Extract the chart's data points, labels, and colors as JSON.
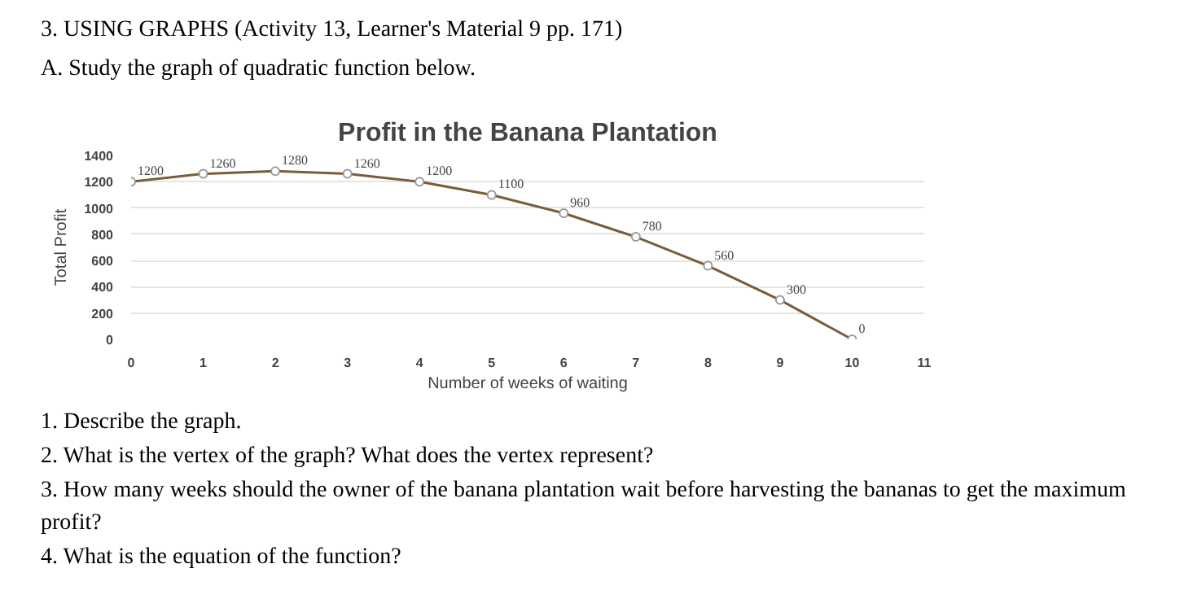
{
  "chart_data": {
    "type": "line",
    "title": "Profit in the Banana Plantation",
    "xlabel": "Number of weeks of waiting",
    "ylabel": "Total Profit",
    "annotations": [
      "3. USING GRAPHS (Activity 13, Learner's Material 9 pp. 171)",
      "A. Study the graph of quadratic function below.",
      "1. Describe the graph.",
      "2. What is the vertex of the graph? What does the vertex represent?",
      "3. How many weeks should the owner of the banana plantation wait before harvesting the bananas to get the maximum profit?",
      "4. What is the equation of the function?"
    ],
    "x": [
      0,
      1,
      2,
      3,
      4,
      5,
      6,
      7,
      8,
      9,
      10
    ],
    "series": [
      {
        "color": "#7a5c3a",
        "values": [
          1200,
          1260,
          1280,
          1260,
          1200,
          1100,
          960,
          780,
          560,
          300,
          0
        ]
      }
    ],
    "xlim": [
      0,
      11
    ],
    "xticks": [
      0,
      1,
      2,
      3,
      4,
      5,
      6,
      7,
      8,
      9,
      10,
      11
    ],
    "ylim": [
      0,
      1400
    ],
    "yticks": [
      0,
      200,
      400,
      600,
      800,
      1000,
      1200,
      1400
    ],
    "grid": "y",
    "marker": "circle",
    "line_style": "solid",
    "data_labels": true
  }
}
